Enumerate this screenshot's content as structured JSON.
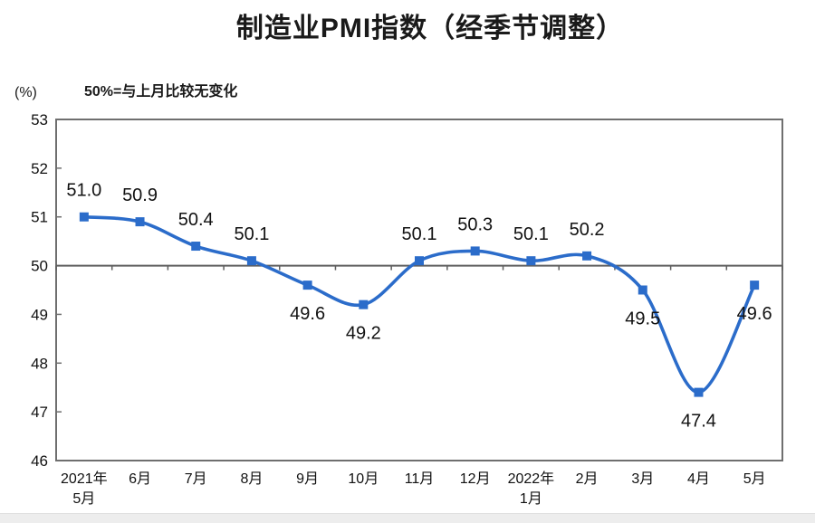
{
  "chart_data": {
    "type": "line",
    "title": "制造业PMI指数（经季节调整）",
    "unit": "(%)",
    "note": "50%=与上月比较无变化",
    "x_labels": [
      [
        "2021年",
        "5月"
      ],
      [
        "6月"
      ],
      [
        "7月"
      ],
      [
        "8月"
      ],
      [
        "9月"
      ],
      [
        "10月"
      ],
      [
        "11月"
      ],
      [
        "12月"
      ],
      [
        "2022年",
        "1月"
      ],
      [
        "2月"
      ],
      [
        "3月"
      ],
      [
        "4月"
      ],
      [
        "5月"
      ]
    ],
    "values": [
      51.0,
      50.9,
      50.4,
      50.1,
      49.6,
      49.2,
      50.1,
      50.3,
      50.1,
      50.2,
      49.5,
      47.4,
      49.6
    ],
    "label_side": [
      "above",
      "above",
      "above",
      "above",
      "below",
      "below",
      "above",
      "above",
      "above",
      "above",
      "below",
      "below",
      "below"
    ],
    "ylim": [
      46,
      53
    ],
    "y_ticks": [
      53,
      52,
      51,
      50,
      49,
      48,
      47,
      46
    ],
    "baseline": 50,
    "grid": false,
    "legend": "none",
    "smooth": true,
    "marker": "square",
    "line_color": "#2b6cca",
    "axis_color": "#6f6f6f",
    "baseline_color": "#5e5e5e",
    "text_color": "#111111"
  }
}
